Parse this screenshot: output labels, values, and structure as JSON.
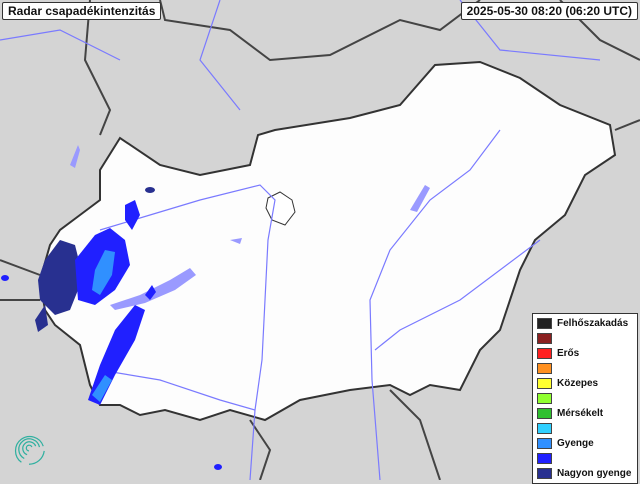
{
  "header": {
    "title": "Radar csapadékintenzitás",
    "timestamp": "2025-05-30 08:20 (06:20 UTC)"
  },
  "legend": {
    "items": [
      {
        "label": "Felhőszakadás",
        "color": "#222222"
      },
      {
        "label": "",
        "color": "#8b2020"
      },
      {
        "label": "Erős",
        "color": "#ff2020"
      },
      {
        "label": "",
        "color": "#ff9020"
      },
      {
        "label": "Közepes",
        "color": "#ffff30"
      },
      {
        "label": "",
        "color": "#90ff30"
      },
      {
        "label": "Mérsékelt",
        "color": "#30c030"
      },
      {
        "label": "",
        "color": "#30d0ff"
      },
      {
        "label": "Gyenge",
        "color": "#3090ff"
      },
      {
        "label": "",
        "color": "#2020ff"
      },
      {
        "label": "Nagyon gyenge",
        "color": "#283090"
      }
    ]
  },
  "map": {
    "country_fill": "#ffffff",
    "surroundings_fill": "#d4d4d4",
    "river_color": "#7a7aff",
    "border_color": "#444444"
  },
  "logo": {
    "icon": "spiral-logo-icon",
    "color": "#30b0a0"
  }
}
